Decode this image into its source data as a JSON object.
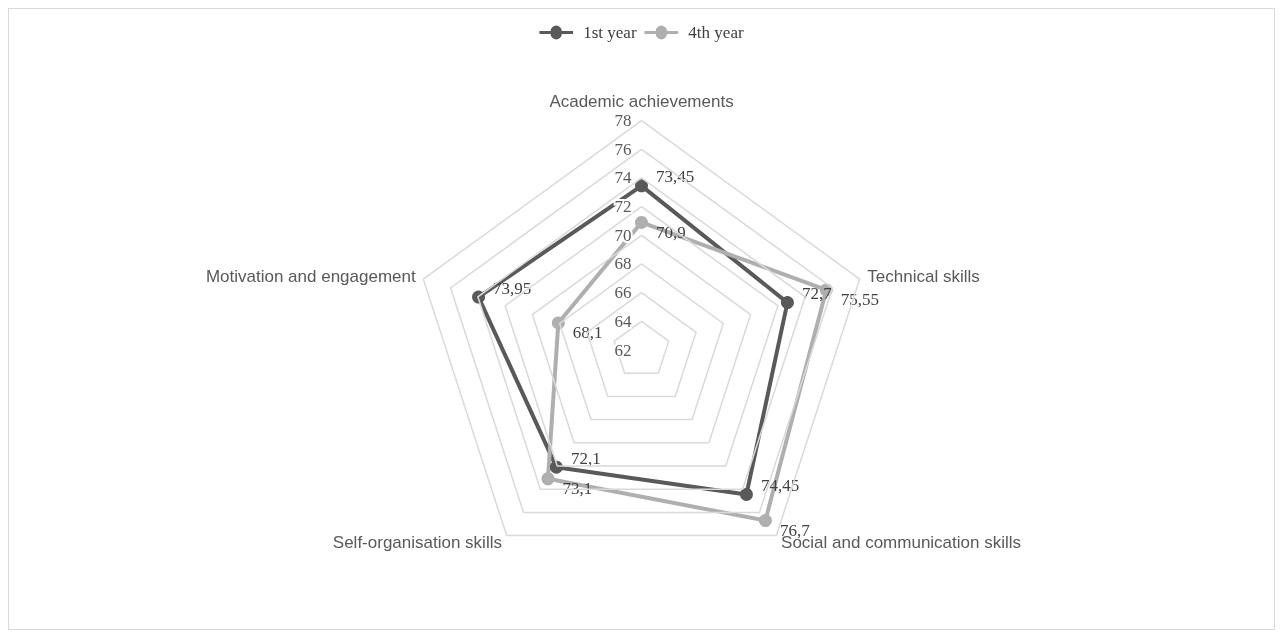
{
  "chart_data": {
    "type": "radar",
    "categories": [
      "Academic achievements",
      "Technical skills",
      "Social and communication skills",
      "Self-organisation skills",
      "Motivation and engagement"
    ],
    "ylim": [
      62,
      78
    ],
    "yticks": [
      62,
      64,
      66,
      68,
      70,
      72,
      74,
      76,
      78
    ],
    "grid": true,
    "legend": "top",
    "marker": "circle",
    "series": [
      {
        "name": "1st year",
        "color": "#595959",
        "values": [
          73.45,
          72.7,
          74.45,
          72.1,
          73.95
        ],
        "value_labels": [
          "73,45",
          "72,7",
          "74,45",
          "72,1",
          "73,95"
        ]
      },
      {
        "name": "4th year",
        "color": "#afafaf",
        "values": [
          70.9,
          75.55,
          76.7,
          73.1,
          68.1
        ],
        "value_labels": [
          "70,9",
          "75,55",
          "76,7",
          "73,1",
          "68,1"
        ]
      }
    ]
  }
}
